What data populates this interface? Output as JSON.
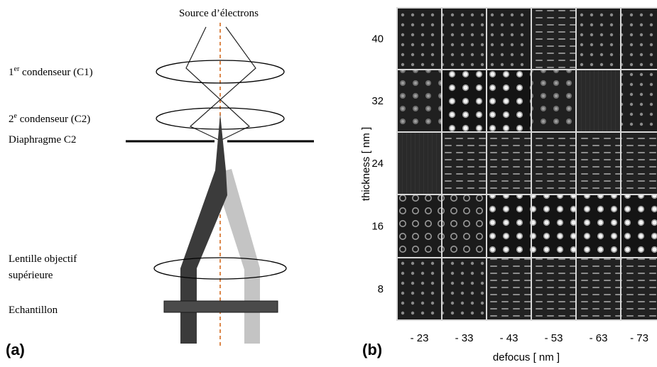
{
  "panel_a": {
    "label": "(a)",
    "source_label": "Source d’électrons",
    "c1_label_base": "1",
    "c1_label_sup": "er",
    "c1_label_rest": " condenseur (C1)",
    "c2_label_base": "2",
    "c2_label_sup": "e",
    "c2_label_rest": " condenseur (C2)",
    "aperture_label": "Diaphragme C2",
    "objective_label_line1": "Lentille objectif",
    "objective_label_line2": "supérieure",
    "sample_label": "Echantillon"
  },
  "panel_b": {
    "label": "(b)",
    "ylabel": "thickness [ nm ]",
    "xlabel": "defocus  [ nm ]",
    "thickness_ticks": [
      "40",
      "32",
      "24",
      "16",
      "8"
    ],
    "defocus_ticks": [
      "- 23",
      "- 33",
      "- 43",
      "- 53",
      "- 63",
      "- 73"
    ],
    "grid": [
      [
        "faint-dots",
        "faint-dots",
        "faint-dots",
        "stripes",
        "faint-dots",
        "faint-dots"
      ],
      [
        "soft-dots",
        "bright-dots",
        "bright-dots",
        "soft-dots",
        "flat",
        "faint-dots"
      ],
      [
        "flat",
        "stripes",
        "stripes",
        "stripes",
        "stripes",
        "stripes"
      ],
      [
        "rings",
        "rings",
        "bright-dots",
        "bright-dots",
        "bright-dots",
        "bright-dots"
      ],
      [
        "faint-dots",
        "faint-dots",
        "stripes",
        "stripes",
        "stripes",
        "stripes"
      ]
    ]
  }
}
